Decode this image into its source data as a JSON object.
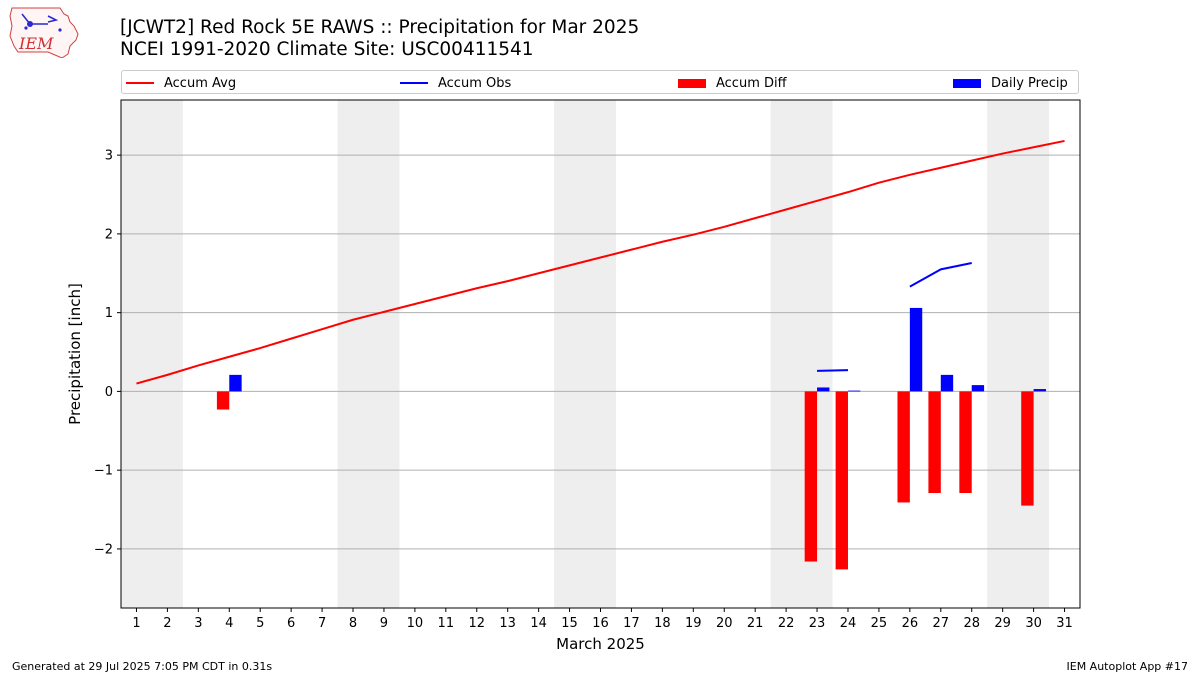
{
  "header": {
    "title_line1": "[JCWT2] Red Rock 5E RAWS :: Precipitation for Mar 2025",
    "title_line2": "NCEI 1991-2020 Climate Site: USC00411541"
  },
  "footer": {
    "left": "Generated at 29 Jul 2025 7:05 PM CDT in 0.31s",
    "right": "IEM Autoplot App #17"
  },
  "logo": {
    "text": "IEM"
  },
  "legend": [
    {
      "label": "Accum Avg",
      "kind": "line",
      "color": "#ff0000"
    },
    {
      "label": "Accum Obs",
      "kind": "line",
      "color": "#0000ff"
    },
    {
      "label": "Accum Diff",
      "kind": "bar",
      "color": "#ff0000"
    },
    {
      "label": "Daily Precip",
      "kind": "bar",
      "color": "#0000ff"
    }
  ],
  "chart_data": {
    "type": "bar",
    "xlabel": "March 2025",
    "ylabel": "Precipitation [inch]",
    "x": [
      1,
      2,
      3,
      4,
      5,
      6,
      7,
      8,
      9,
      10,
      11,
      12,
      13,
      14,
      15,
      16,
      17,
      18,
      19,
      20,
      21,
      22,
      23,
      24,
      25,
      26,
      27,
      28,
      29,
      30,
      31
    ],
    "xlim": [
      0.5,
      31.5
    ],
    "ylim": [
      -2.75,
      3.7
    ],
    "yticks": [
      -2,
      -1,
      0,
      1,
      2,
      3
    ],
    "ytick_labels": [
      "−2",
      "−1",
      "0",
      "1",
      "2",
      "3"
    ],
    "grid": "horizontal",
    "weekend_shading": [
      [
        0.5,
        2.5
      ],
      [
        7.5,
        9.5
      ],
      [
        14.5,
        16.5
      ],
      [
        21.5,
        23.5
      ],
      [
        28.5,
        30.5
      ]
    ],
    "shade_color": "#eeeeee",
    "series": [
      {
        "name": "Accum Avg",
        "kind": "line",
        "color": "#ff0000",
        "points": [
          [
            1,
            0.1
          ],
          [
            2,
            0.21
          ],
          [
            3,
            0.33
          ],
          [
            4,
            0.44
          ],
          [
            5,
            0.55
          ],
          [
            6,
            0.67
          ],
          [
            7,
            0.79
          ],
          [
            8,
            0.91
          ],
          [
            9,
            1.01
          ],
          [
            10,
            1.11
          ],
          [
            11,
            1.21
          ],
          [
            12,
            1.31
          ],
          [
            13,
            1.4
          ],
          [
            14,
            1.5
          ],
          [
            15,
            1.6
          ],
          [
            16,
            1.7
          ],
          [
            17,
            1.8
          ],
          [
            18,
            1.9
          ],
          [
            19,
            1.99
          ],
          [
            20,
            2.09
          ],
          [
            21,
            2.2
          ],
          [
            22,
            2.31
          ],
          [
            23,
            2.42
          ],
          [
            24,
            2.53
          ],
          [
            25,
            2.65
          ],
          [
            26,
            2.75
          ],
          [
            27,
            2.84
          ],
          [
            28,
            2.93
          ],
          [
            29,
            3.02
          ],
          [
            30,
            3.1
          ],
          [
            31,
            3.18
          ]
        ]
      },
      {
        "name": "Accum Obs",
        "kind": "line-segments",
        "color": "#0000ff",
        "segments": [
          [
            [
              23,
              0.26
            ],
            [
              24,
              0.27
            ]
          ],
          [
            [
              26,
              1.33
            ],
            [
              27,
              1.55
            ],
            [
              28,
              1.63
            ]
          ]
        ]
      },
      {
        "name": "Accum Diff",
        "kind": "bar",
        "color": "#ff0000",
        "offset": -0.2,
        "points": [
          [
            4,
            -0.23
          ],
          [
            23,
            -2.16
          ],
          [
            24,
            -2.26
          ],
          [
            26,
            -1.41
          ],
          [
            27,
            -1.29
          ],
          [
            28,
            -1.29
          ],
          [
            30,
            -1.45
          ]
        ]
      },
      {
        "name": "Daily Precip",
        "kind": "bar",
        "color": "#0000ff",
        "offset": 0.2,
        "points": [
          [
            4,
            0.21
          ],
          [
            23,
            0.05
          ],
          [
            24,
            0.01
          ],
          [
            26,
            1.06
          ],
          [
            27,
            0.21
          ],
          [
            28,
            0.08
          ],
          [
            30,
            0.03
          ]
        ]
      }
    ]
  }
}
